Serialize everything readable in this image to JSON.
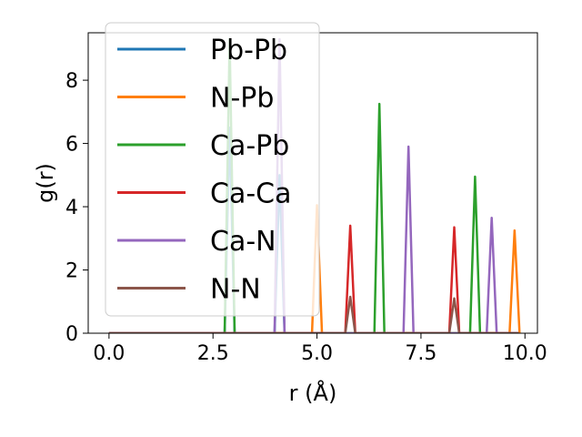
{
  "chart_data": {
    "type": "line",
    "xlabel": "r (Å)",
    "ylabel": "g(r)",
    "xlim": [
      -0.5,
      10.3
    ],
    "ylim": [
      0,
      9.5
    ],
    "xticks": [
      0.0,
      2.5,
      5.0,
      7.5,
      10.0
    ],
    "xtick_labels": [
      "0.0",
      "2.5",
      "5.0",
      "7.5",
      "10.0"
    ],
    "yticks": [
      0,
      2,
      4,
      6,
      8
    ],
    "ytick_labels": [
      "0",
      "2",
      "4",
      "6",
      "8"
    ],
    "legend_position": "top-left",
    "series": [
      {
        "name": "Pb-Pb",
        "color": "#1f77b4",
        "peaks": [
          [
            2.9,
            6.5
          ],
          [
            4.1,
            5.0
          ]
        ]
      },
      {
        "name": "N-Pb",
        "color": "#ff7f0e",
        "peaks": [
          [
            5.0,
            4.05
          ],
          [
            9.75,
            3.25
          ]
        ]
      },
      {
        "name": "Ca-Pb",
        "color": "#2ca02c",
        "peaks": [
          [
            2.9,
            9.3
          ],
          [
            6.5,
            7.25
          ],
          [
            8.8,
            4.95
          ]
        ]
      },
      {
        "name": "Ca-Ca",
        "color": "#d62728",
        "peaks": [
          [
            5.8,
            3.4
          ],
          [
            8.3,
            3.35
          ]
        ]
      },
      {
        "name": "Ca-N",
        "color": "#9467bd",
        "peaks": [
          [
            4.1,
            9.3
          ],
          [
            7.2,
            5.9
          ],
          [
            9.2,
            3.65
          ]
        ]
      },
      {
        "name": "N-N",
        "color": "#8c564b",
        "peaks": [
          [
            5.8,
            1.15
          ],
          [
            8.3,
            1.1
          ]
        ]
      }
    ]
  }
}
